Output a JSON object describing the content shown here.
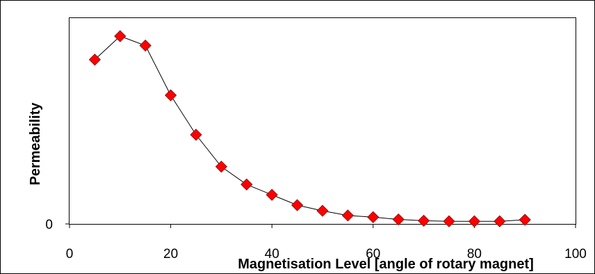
{
  "chart_data": {
    "type": "scatter",
    "title": "",
    "xlabel": "Magnetisation Level [angle of rotary magnet]",
    "ylabel": "Permeability",
    "xlim": [
      0,
      100
    ],
    "ylim": [
      0,
      1
    ],
    "x_ticks": [
      0,
      20,
      40,
      60,
      80,
      100
    ],
    "x_tick_labels": [
      "0",
      "20",
      "40",
      "60",
      "80",
      "100"
    ],
    "y_ticks": [
      0
    ],
    "y_tick_labels": [
      "0"
    ],
    "grid": false,
    "legend": "none",
    "marker": "diamond",
    "marker_color": "#ff0000",
    "line_color": "#000000",
    "series": [
      {
        "x": [
          5,
          10,
          15,
          20,
          25,
          30,
          35,
          40,
          45,
          50,
          55,
          60,
          65,
          70,
          75,
          80,
          85,
          90
        ],
        "y": [
          0.875,
          1.0,
          0.95,
          0.685,
          0.475,
          0.305,
          0.21,
          0.155,
          0.1,
          0.07,
          0.045,
          0.036,
          0.024,
          0.017,
          0.014,
          0.014,
          0.014,
          0.022
        ]
      }
    ]
  }
}
